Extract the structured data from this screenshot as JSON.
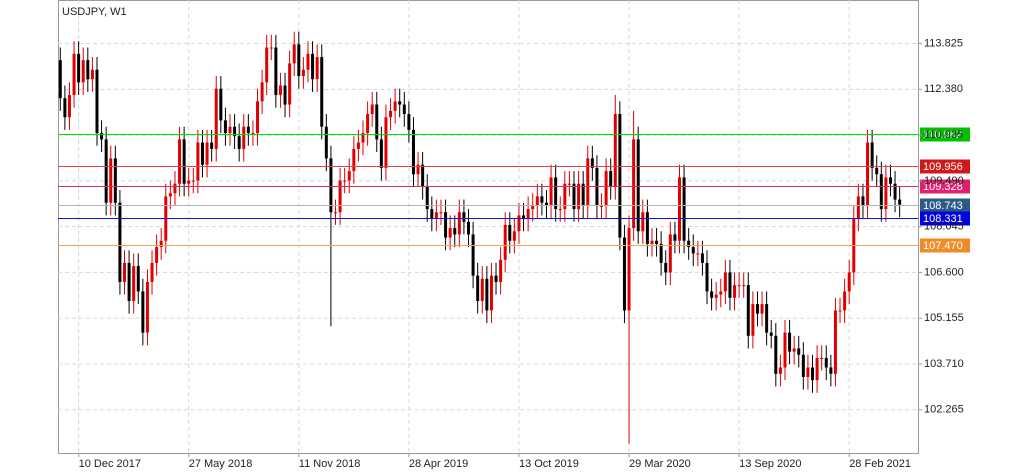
{
  "chart_data": {
    "type": "candlestick",
    "title": "USDJPY, W1",
    "up_color": "#e00000",
    "down_color": "#000000",
    "grid": true,
    "xlim": [
      -0.5,
      187
    ],
    "ylim": [
      100.9,
      115.2
    ],
    "xticks": [
      {
        "value": 4,
        "label": "10 Dec 2017"
      },
      {
        "value": 28,
        "label": "27 May 2018"
      },
      {
        "value": 52,
        "label": "11 Nov 2018"
      },
      {
        "value": 76,
        "label": "28 Apr 2019"
      },
      {
        "value": 100,
        "label": "13 Oct 2019"
      },
      {
        "value": 124,
        "label": "29 Mar 2020"
      },
      {
        "value": 148,
        "label": "13 Sep 2020"
      },
      {
        "value": 172,
        "label": "28 Feb 2021"
      }
    ],
    "yticks": [
      113.825,
      {
        "value": 112.38,
        "label": "112.380"
      },
      110.935,
      {
        "value": 109.49,
        "label": "109.490"
      },
      108.045,
      {
        "value": 106.6,
        "label": "106.600"
      },
      105.155,
      {
        "value": 103.71,
        "label": "103.710"
      },
      102.265
    ],
    "levels": [
      {
        "value": 110.962,
        "color": "#00dd00",
        "box": "#00c000"
      },
      {
        "value": 109.956,
        "color": "#e04050",
        "box": "#d01818"
      },
      {
        "value": 109.328,
        "color": "#d03060",
        "box": "#e0206e"
      },
      {
        "value": 108.743,
        "color": "#b4b4b4",
        "box": "#2c5a85"
      },
      {
        "value": 108.331,
        "color": "#1010e0",
        "box": "#0000e0"
      },
      {
        "value": 107.47,
        "label": "107.470",
        "color": "#f5a060",
        "box": "#f08c28"
      }
    ],
    "open": [
      113.3,
      112.1,
      111.5,
      112.2,
      113.5,
      112.6,
      113.3,
      112.7,
      113.0,
      111.0,
      110.8,
      108.8,
      110.2,
      108.8,
      106.3,
      106.9,
      105.7,
      106.8,
      106.0,
      104.7,
      106.3,
      106.9,
      107.4,
      107.6,
      109.0,
      109.1,
      109.4,
      110.8,
      109.4,
      109.5,
      109.5,
      110.7,
      110.0,
      110.7,
      110.5,
      112.4,
      111.4,
      111.0,
      111.2,
      110.9,
      110.5,
      111.2,
      111.0,
      111.0,
      112.0,
      112.6,
      113.7,
      113.7,
      112.2,
      112.5,
      111.9,
      113.2,
      113.8,
      112.8,
      113.0,
      113.5,
      112.7,
      113.4,
      111.2,
      110.2,
      108.5,
      108.5,
      109.5,
      109.5,
      109.8,
      110.5,
      110.7,
      111.0,
      111.6,
      111.9,
      110.8,
      109.9,
      111.5,
      111.7,
      112.0,
      111.9,
      111.6,
      111.1,
      109.7,
      110.0,
      109.3,
      108.6,
      108.3,
      108.5,
      108.5,
      107.7,
      108.0,
      107.8,
      108.5,
      108.2,
      107.8,
      106.5,
      105.7,
      106.4,
      105.4,
      106.5,
      106.3,
      107.0,
      108.1,
      107.6,
      107.9,
      108.4,
      108.3,
      108.6,
      108.7,
      109.0,
      108.8,
      108.7,
      109.6,
      108.6,
      108.6,
      109.4,
      109.4,
      108.6,
      109.4,
      108.7,
      110.2,
      109.9,
      108.7,
      108.7,
      109.8,
      109.3,
      111.6,
      107.7,
      105.4,
      108.0,
      110.8,
      107.9,
      108.5,
      107.5,
      107.6,
      107.5,
      106.9,
      106.6,
      107.8,
      107.6,
      109.6,
      107.6,
      107.4,
      107.2,
      107.2,
      106.9,
      106.0,
      105.8,
      105.9,
      106.0,
      106.6,
      105.8,
      106.2,
      106.2,
      106.2,
      104.6,
      105.6,
      105.3,
      105.6,
      104.7,
      104.6,
      103.4,
      103.6,
      104.7,
      104.1,
      104.2,
      104.0,
      103.3,
      103.6,
      103.2,
      103.9,
      103.9,
      103.6,
      103.4,
      105.4,
      105.4,
      106.0,
      106.6,
      108.3,
      109.0,
      108.7,
      110.7,
      109.9,
      109.7,
      108.6,
      109.6,
      109.4,
      108.9
    ],
    "high": [
      113.7,
      112.5,
      112.6,
      113.9,
      113.9,
      113.7,
      113.7,
      113.4,
      113.4,
      111.4,
      111.2,
      110.6,
      110.6,
      109.2,
      107.3,
      107.3,
      107.2,
      107.2,
      106.4,
      106.7,
      107.3,
      107.8,
      108.0,
      109.4,
      109.5,
      109.8,
      111.2,
      111.2,
      109.9,
      109.9,
      111.1,
      111.1,
      111.1,
      111.1,
      112.8,
      112.8,
      111.8,
      111.6,
      111.6,
      111.3,
      111.6,
      111.6,
      111.4,
      112.4,
      113.0,
      114.1,
      114.1,
      114.1,
      112.9,
      112.9,
      113.6,
      114.2,
      114.2,
      113.4,
      113.9,
      113.9,
      113.8,
      113.8,
      111.6,
      110.6,
      108.9,
      109.9,
      109.9,
      110.2,
      110.9,
      111.1,
      111.4,
      112.0,
      112.3,
      112.3,
      111.2,
      111.9,
      112.1,
      112.4,
      112.4,
      112.3,
      112.0,
      111.5,
      110.4,
      110.4,
      109.7,
      109.0,
      108.9,
      108.9,
      108.9,
      108.4,
      108.4,
      108.9,
      108.9,
      108.6,
      108.2,
      106.9,
      106.8,
      106.8,
      106.9,
      106.9,
      107.4,
      108.5,
      108.5,
      108.3,
      108.8,
      108.8,
      109.0,
      109.1,
      109.4,
      109.4,
      109.2,
      110.0,
      110.0,
      109.0,
      109.8,
      109.8,
      109.8,
      109.8,
      109.8,
      110.6,
      110.6,
      110.3,
      109.1,
      110.2,
      110.2,
      112.2,
      112.0,
      108.1,
      108.4,
      111.7,
      111.2,
      108.9,
      108.9,
      108.0,
      108.0,
      107.9,
      107.3,
      108.2,
      108.2,
      110.0,
      110.0,
      108.0,
      107.8,
      107.6,
      107.6,
      107.3,
      106.4,
      106.3,
      106.4,
      107.0,
      107.0,
      106.6,
      106.6,
      106.6,
      106.6,
      106.0,
      106.0,
      106.0,
      106.0,
      105.1,
      105.0,
      104.0,
      105.1,
      105.1,
      104.6,
      104.6,
      104.4,
      104.0,
      104.0,
      104.3,
      104.3,
      104.3,
      104.0,
      105.8,
      105.8,
      106.4,
      107.0,
      108.7,
      109.4,
      109.4,
      111.1,
      111.1,
      110.3,
      110.1,
      110.0,
      110.0,
      109.8,
      109.3
    ],
    "low": [
      111.7,
      111.1,
      111.1,
      111.8,
      112.2,
      112.2,
      112.3,
      112.3,
      110.6,
      110.4,
      108.4,
      108.4,
      108.4,
      105.9,
      105.9,
      105.3,
      105.3,
      105.6,
      104.3,
      104.3,
      105.9,
      106.5,
      107.0,
      107.2,
      108.6,
      108.7,
      109.0,
      109.0,
      109.0,
      109.1,
      109.1,
      109.6,
      109.6,
      110.1,
      110.1,
      111.0,
      110.6,
      110.6,
      110.5,
      110.1,
      110.1,
      110.6,
      110.6,
      110.6,
      111.6,
      112.2,
      113.3,
      111.8,
      111.8,
      111.5,
      111.5,
      112.8,
      112.4,
      112.4,
      112.6,
      112.3,
      112.3,
      110.8,
      109.8,
      104.9,
      108.1,
      108.1,
      109.1,
      109.1,
      109.4,
      110.1,
      110.3,
      110.6,
      111.2,
      110.4,
      109.5,
      109.5,
      111.1,
      111.3,
      111.5,
      111.2,
      110.7,
      109.3,
      109.3,
      108.9,
      108.2,
      107.9,
      107.9,
      108.1,
      107.3,
      107.3,
      107.4,
      107.4,
      107.8,
      107.4,
      106.1,
      105.3,
      105.3,
      105.0,
      105.0,
      105.9,
      105.9,
      106.6,
      107.2,
      107.2,
      107.5,
      107.9,
      107.9,
      108.2,
      108.3,
      108.4,
      108.3,
      108.3,
      108.2,
      108.2,
      108.2,
      109.0,
      108.2,
      108.2,
      108.3,
      108.3,
      109.5,
      108.3,
      108.3,
      108.3,
      108.9,
      108.9,
      107.3,
      105.0,
      101.2,
      107.6,
      107.5,
      107.5,
      107.1,
      107.1,
      107.1,
      106.5,
      106.2,
      106.2,
      107.2,
      107.2,
      107.2,
      107.0,
      106.8,
      106.8,
      106.5,
      105.6,
      105.4,
      105.4,
      105.5,
      105.6,
      105.4,
      105.4,
      105.8,
      105.8,
      104.2,
      104.2,
      104.9,
      104.9,
      104.3,
      104.2,
      103.0,
      103.0,
      103.2,
      103.7,
      103.7,
      103.6,
      102.9,
      102.9,
      102.8,
      102.8,
      103.5,
      103.2,
      103.0,
      103.0,
      105.0,
      105.0,
      105.6,
      106.2,
      107.9,
      108.3,
      108.3,
      109.5,
      109.3,
      108.2,
      108.2,
      109.0,
      108.5,
      108.34
    ],
    "close": [
      112.1,
      111.5,
      112.2,
      113.5,
      112.6,
      113.3,
      112.7,
      113.0,
      111.0,
      110.8,
      108.8,
      110.2,
      108.8,
      106.3,
      106.9,
      105.7,
      106.8,
      106.0,
      104.7,
      106.3,
      106.9,
      107.4,
      107.6,
      109.0,
      109.1,
      109.4,
      110.8,
      109.4,
      109.5,
      109.5,
      110.7,
      110.0,
      110.7,
      110.5,
      112.4,
      111.4,
      111.0,
      111.2,
      110.9,
      110.5,
      111.2,
      111.0,
      111.0,
      112.0,
      112.6,
      113.7,
      113.7,
      112.2,
      112.5,
      111.9,
      113.2,
      113.8,
      112.8,
      113.0,
      113.5,
      112.7,
      113.4,
      111.2,
      110.2,
      108.5,
      108.5,
      109.5,
      109.5,
      109.8,
      110.5,
      110.7,
      111.0,
      111.6,
      111.9,
      110.8,
      109.9,
      111.5,
      111.7,
      112.0,
      111.9,
      111.6,
      111.1,
      109.7,
      110.0,
      109.3,
      108.6,
      108.3,
      108.5,
      108.5,
      107.7,
      108.0,
      107.8,
      108.5,
      108.2,
      107.8,
      106.5,
      105.7,
      106.4,
      105.4,
      106.5,
      106.3,
      107.0,
      108.1,
      107.6,
      107.9,
      108.4,
      108.3,
      108.6,
      108.7,
      109.0,
      108.8,
      108.7,
      109.6,
      108.6,
      108.6,
      109.4,
      109.4,
      108.6,
      109.4,
      108.7,
      110.2,
      109.9,
      108.7,
      108.7,
      109.8,
      109.3,
      111.6,
      107.7,
      105.4,
      108.0,
      110.8,
      107.9,
      108.5,
      107.5,
      107.6,
      107.5,
      106.9,
      106.6,
      107.8,
      107.6,
      109.6,
      107.6,
      107.4,
      107.2,
      107.2,
      106.9,
      106.0,
      105.8,
      105.9,
      106.0,
      106.6,
      105.8,
      106.2,
      106.2,
      106.2,
      104.6,
      105.6,
      105.3,
      105.6,
      104.7,
      104.6,
      103.4,
      103.6,
      104.7,
      104.1,
      104.2,
      104.0,
      103.3,
      103.6,
      103.2,
      103.9,
      103.9,
      103.6,
      103.4,
      105.4,
      105.4,
      106.0,
      106.6,
      108.3,
      109.0,
      108.7,
      110.7,
      109.9,
      109.7,
      108.6,
      109.6,
      109.4,
      108.9,
      108.74
    ]
  }
}
